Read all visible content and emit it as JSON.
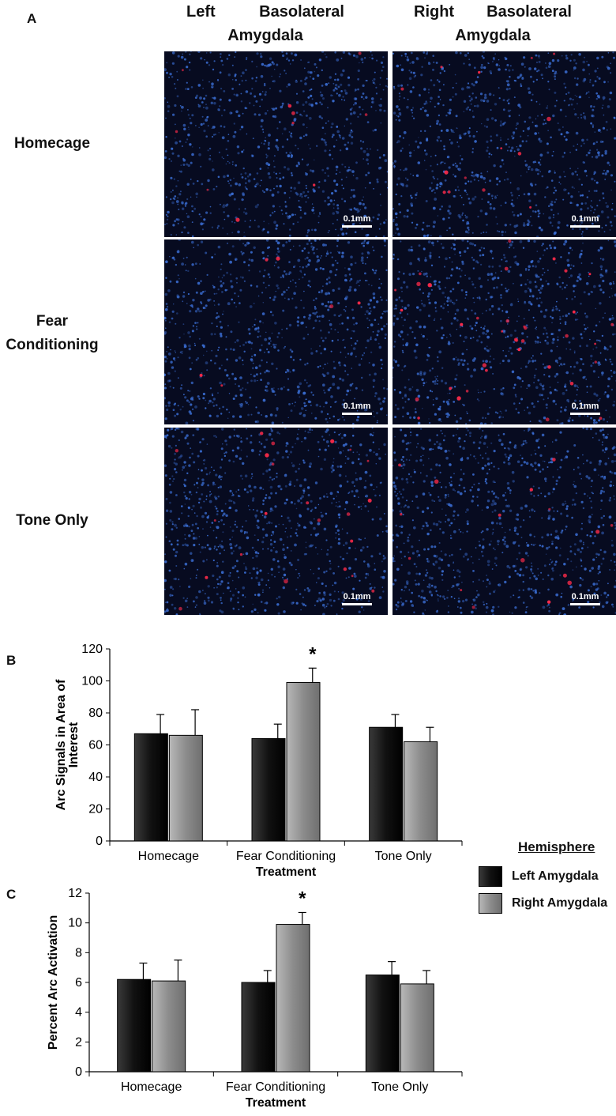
{
  "panel_a": {
    "letter": "A",
    "columns": [
      {
        "line1a": "Left",
        "line1b": "Basolateral",
        "line2": "Amygdala"
      },
      {
        "line1a": "Right",
        "line1b": "Basolateral",
        "line2": "Amygdala"
      }
    ],
    "rows": [
      {
        "line1": "Homecage",
        "line2": ""
      },
      {
        "line1": "Fear",
        "line2": "Conditioning"
      },
      {
        "line1": "Tone Only",
        "line2": ""
      }
    ],
    "scale_label": "0.1mm",
    "image_density": [
      [
        0.25,
        0.35
      ],
      [
        0.15,
        0.9
      ],
      [
        0.55,
        0.4
      ]
    ]
  },
  "legend": {
    "title": "Hemisphere",
    "items": [
      "Left Amygdala",
      "Right Amygdala"
    ]
  },
  "colors": {
    "left": "#111111",
    "right": "#8c8c8c",
    "nuclei": "#3b6fd6",
    "arc": "#ff2b4a"
  },
  "chart_data": [
    {
      "panel_letter": "B",
      "type": "bar",
      "title": "",
      "xlabel": "Treatment",
      "ylabel": "Arc Signals in Area of Interest",
      "ylim": [
        0,
        120
      ],
      "yticks": [
        "0",
        "20",
        "40",
        "60",
        "80",
        "100",
        "120"
      ],
      "categories": [
        "Homecage",
        "Fear Conditioning",
        "Tone Only"
      ],
      "series": [
        {
          "name": "Left Amygdala",
          "values": [
            67,
            64,
            71
          ],
          "errors": [
            12,
            9,
            8
          ]
        },
        {
          "name": "Right Amygdala",
          "values": [
            66,
            99,
            62
          ],
          "errors": [
            16,
            9,
            9
          ]
        }
      ],
      "annotations": [
        {
          "category": "Fear Conditioning",
          "series": "Right Amygdala",
          "text": "*"
        }
      ],
      "grid": false,
      "legend": "right"
    },
    {
      "panel_letter": "C",
      "type": "bar",
      "title": "",
      "xlabel": "Treatment",
      "ylabel": "Percent Arc Activation",
      "ylim": [
        0,
        12
      ],
      "yticks": [
        "0",
        "2",
        "4",
        "6",
        "8",
        "10",
        "12"
      ],
      "categories": [
        "Homecage",
        "Fear Conditioning",
        "Tone Only"
      ],
      "series": [
        {
          "name": "Left Amygdala",
          "values": [
            6.2,
            6.0,
            6.5
          ],
          "errors": [
            1.1,
            0.8,
            0.9
          ]
        },
        {
          "name": "Right Amygdala",
          "values": [
            6.1,
            9.9,
            5.9
          ],
          "errors": [
            1.4,
            0.8,
            0.9
          ]
        }
      ],
      "annotations": [
        {
          "category": "Fear Conditioning",
          "series": "Right Amygdala",
          "text": "*"
        }
      ],
      "grid": false,
      "legend": "right"
    }
  ]
}
